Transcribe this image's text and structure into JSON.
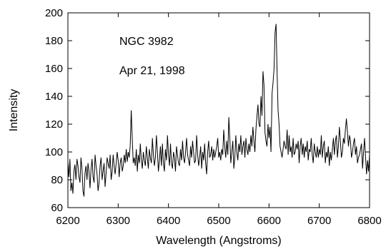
{
  "chart_data": {
    "type": "line",
    "title": "",
    "xlabel": "Wavelength (Angstroms)",
    "ylabel": "Intensity",
    "xlim": [
      6200,
      6800
    ],
    "ylim": [
      60,
      200
    ],
    "x_ticks": [
      6200,
      6300,
      6400,
      6500,
      6600,
      6700,
      6800
    ],
    "y_ticks": [
      60,
      80,
      100,
      120,
      140,
      160,
      180,
      200
    ],
    "grid": false,
    "legend": "none",
    "line_color": "#000000",
    "annotations": [
      "NGC 3982",
      "Apr 21, 1998"
    ],
    "series": [
      {
        "x": [
          6200,
          6202,
          6204,
          6206,
          6208,
          6210,
          6212,
          6214,
          6216,
          6218,
          6220,
          6222,
          6224,
          6226,
          6228,
          6230,
          6232,
          6234,
          6236,
          6238,
          6240,
          6242,
          6244,
          6246,
          6248,
          6250,
          6252,
          6254,
          6256,
          6258,
          6260,
          6262,
          6264,
          6266,
          6268,
          6270,
          6272,
          6274,
          6276,
          6278,
          6280,
          6282,
          6284,
          6286,
          6288,
          6290,
          6292,
          6294,
          6296,
          6298,
          6300,
          6302,
          6304,
          6306,
          6308,
          6310,
          6312,
          6314,
          6316,
          6318,
          6320,
          6322,
          6324,
          6326,
          6328,
          6330,
          6332,
          6334,
          6336,
          6338,
          6340,
          6342,
          6344,
          6346,
          6348,
          6350,
          6352,
          6354,
          6356,
          6358,
          6360,
          6362,
          6364,
          6366,
          6368,
          6370,
          6372,
          6374,
          6376,
          6378,
          6380,
          6382,
          6384,
          6386,
          6388,
          6390,
          6392,
          6394,
          6396,
          6398,
          6400,
          6402,
          6404,
          6406,
          6408,
          6410,
          6412,
          6414,
          6416,
          6418,
          6420,
          6422,
          6424,
          6426,
          6428,
          6430,
          6432,
          6434,
          6436,
          6438,
          6440,
          6442,
          6444,
          6446,
          6448,
          6450,
          6452,
          6454,
          6456,
          6458,
          6460,
          6462,
          6464,
          6466,
          6468,
          6470,
          6472,
          6474,
          6476,
          6478,
          6480,
          6482,
          6484,
          6486,
          6488,
          6490,
          6492,
          6494,
          6496,
          6498,
          6500,
          6502,
          6504,
          6506,
          6508,
          6510,
          6512,
          6514,
          6516,
          6518,
          6520,
          6522,
          6524,
          6526,
          6528,
          6530,
          6532,
          6534,
          6536,
          6538,
          6540,
          6542,
          6544,
          6546,
          6548,
          6550,
          6552,
          6554,
          6556,
          6558,
          6560,
          6562,
          6564,
          6566,
          6568,
          6570,
          6572,
          6574,
          6576,
          6578,
          6580,
          6582,
          6584,
          6586,
          6588,
          6590,
          6592,
          6594,
          6596,
          6598,
          6600,
          6602,
          6604,
          6606,
          6608,
          6610,
          6612,
          6614,
          6616,
          6618,
          6620,
          6622,
          6624,
          6626,
          6628,
          6630,
          6632,
          6634,
          6636,
          6638,
          6640,
          6642,
          6644,
          6646,
          6648,
          6650,
          6652,
          6654,
          6656,
          6658,
          6660,
          6662,
          6664,
          6666,
          6668,
          6670,
          6672,
          6674,
          6676,
          6678,
          6680,
          6682,
          6684,
          6686,
          6688,
          6690,
          6692,
          6694,
          6696,
          6698,
          6700,
          6702,
          6704,
          6706,
          6708,
          6710,
          6712,
          6714,
          6716,
          6718,
          6720,
          6722,
          6724,
          6726,
          6728,
          6730,
          6732,
          6734,
          6736,
          6738,
          6740,
          6742,
          6744,
          6746,
          6748,
          6750,
          6752,
          6754,
          6756,
          6758,
          6760,
          6762,
          6764,
          6766,
          6768,
          6770,
          6772,
          6774,
          6776,
          6778,
          6780,
          6782,
          6784,
          6786,
          6788,
          6790,
          6792,
          6794,
          6796,
          6798,
          6800
        ],
        "y": [
          93,
          82,
          95,
          72,
          78,
          70,
          86,
          91,
          80,
          95,
          90,
          82,
          78,
          96,
          88,
          72,
          68,
          85,
          90,
          80,
          92,
          86,
          74,
          88,
          95,
          82,
          78,
          98,
          90,
          84,
          72,
          78,
          90,
          96,
          80,
          86,
          92,
          75,
          85,
          96,
          92,
          88,
          98,
          80,
          86,
          98,
          90,
          84,
          92,
          100,
          94,
          82,
          92,
          96,
          86,
          90,
          98,
          92,
          102,
          93,
          100,
          96,
          105,
          130,
          110,
          92,
          96,
          90,
          102,
          86,
          98,
          92,
          106,
          94,
          88,
          100,
          94,
          90,
          104,
          96,
          88,
          102,
          96,
          92,
          110,
          98,
          90,
          96,
          112,
          100,
          86,
          94,
          104,
          90,
          106,
          92,
          86,
          102,
          94,
          112,
          98,
          90,
          106,
          92,
          88,
          100,
          96,
          86,
          104,
          98,
          92,
          90,
          102,
          94,
          108,
          96,
          92,
          100,
          110,
          98,
          94,
          90,
          104,
          96,
          108,
          100,
          92,
          94,
          112,
          98,
          90,
          96,
          104,
          88,
          100,
          94,
          106,
          92,
          84,
          100,
          108,
          96,
          98,
          104,
          94,
          102,
          96,
          100,
          104,
          110,
          96,
          100,
          94,
          102,
          98,
          116,
          104,
          96,
          108,
          98,
          125,
          110,
          92,
          100,
          108,
          88,
          96,
          112,
          100,
          94,
          106,
          100,
          112,
          98,
          104,
          108,
          96,
          110,
          102,
          98,
          106,
          100,
          112,
          104,
          118,
          108,
          100,
          116,
          126,
          134,
          120,
          118,
          140,
          126,
          158,
          148,
          114,
          108,
          104,
          120,
          110,
          118,
          100,
          142,
          150,
          160,
          186,
          192,
          158,
          130,
          120,
          104,
          100,
          96,
          102,
          108,
          104,
          102,
          116,
          98,
          112,
          100,
          104,
          96,
          110,
          98,
          100,
          106,
          102,
          108,
          92,
          104,
          110,
          98,
          106,
          96,
          104,
          100,
          108,
          94,
          102,
          100,
          110,
          98,
          92,
          106,
          100,
          96,
          104,
          96,
          102,
          98,
          112,
          96,
          104,
          108,
          92,
          100,
          96,
          104,
          90,
          100,
          94,
          102,
          110,
          98,
          108,
          112,
          96,
          104,
          118,
          108,
          96,
          100,
          110,
          106,
          116,
          124,
          114,
          104,
          112,
          108,
          96,
          100,
          106,
          110,
          98,
          104,
          92,
          96,
          98,
          102,
          106,
          88,
          100,
          110,
          96,
          84,
          94,
          86,
          98
        ]
      }
    ]
  }
}
